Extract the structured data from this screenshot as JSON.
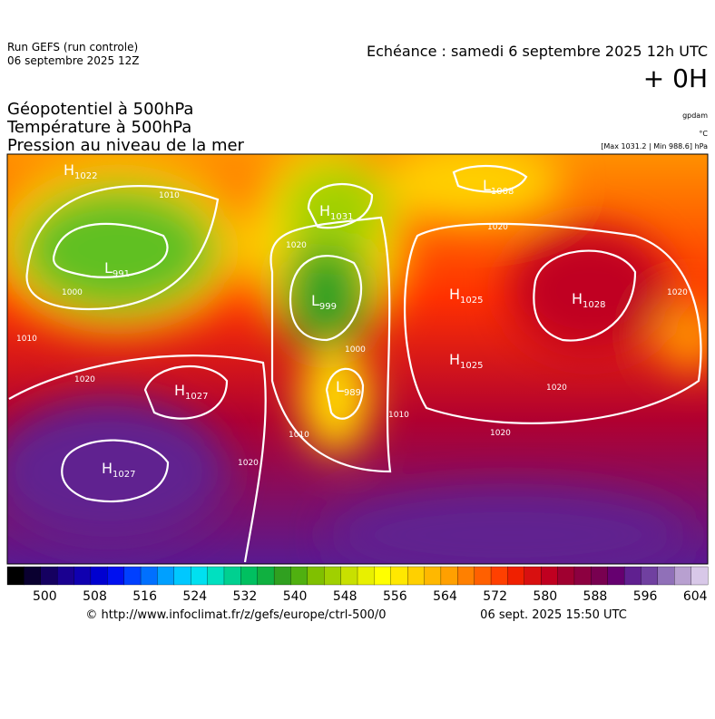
{
  "header": {
    "run": "Run GEFS (run controle)",
    "run_date": "06 septembre 2025 12Z",
    "valid": "Echéance : samedi 6 septembre 2025 12h UTC",
    "lead": "+ 0H"
  },
  "titles": [
    "Géopotentiel à 500hPa",
    "Température à 500hPa",
    "Pression au niveau de la mer"
  ],
  "units": {
    "geopotential": "gpdam",
    "temperature": "°C",
    "pressure": "[Max 1031.2 | Min 988.6] hPa"
  },
  "map": {
    "centers": [
      {
        "kind": "H",
        "value": 1022
      },
      {
        "kind": "L",
        "value": 1008
      },
      {
        "kind": "H",
        "value": 1031
      },
      {
        "kind": "L",
        "value": 991
      },
      {
        "kind": "L",
        "value": 999
      },
      {
        "kind": "H",
        "value": 1025
      },
      {
        "kind": "H",
        "value": 1028
      },
      {
        "kind": "H",
        "value": 1025
      },
      {
        "kind": "H",
        "value": 1027
      },
      {
        "kind": "L",
        "value": 989
      },
      {
        "kind": "H",
        "value": 1027
      }
    ],
    "isobar_labels": [
      1010,
      1020,
      1020,
      1000,
      1010,
      1020,
      1020,
      1000,
      1010,
      1010,
      1020,
      1020,
      1020
    ]
  },
  "colorbar": {
    "lim": [
      494,
      606
    ],
    "ticks": [
      500,
      508,
      516,
      524,
      532,
      540,
      548,
      556,
      564,
      572,
      580,
      588,
      596,
      604
    ],
    "colors": [
      "#000000",
      "#0a0030",
      "#150060",
      "#1a0090",
      "#1000b0",
      "#0000d0",
      "#0010f0",
      "#0040ff",
      "#0070ff",
      "#00a0ff",
      "#00c8ff",
      "#00e0f0",
      "#00e0c0",
      "#00d090",
      "#00c060",
      "#10b040",
      "#30a020",
      "#50b010",
      "#80c000",
      "#a0d000",
      "#c8e000",
      "#e8f000",
      "#ffff00",
      "#ffe800",
      "#ffd000",
      "#ffb800",
      "#ffa000",
      "#ff8000",
      "#ff6000",
      "#ff4000",
      "#f02000",
      "#d81010",
      "#c00020",
      "#a00030",
      "#8c0040",
      "#780050",
      "#660070",
      "#602090",
      "#7040a0",
      "#9070b8",
      "#b8a0d0",
      "#d8c8e8"
    ]
  },
  "footer": {
    "url": "© http://www.infoclimat.fr/z/gefs/europe/ctrl-500/0",
    "time": "06 sept. 2025 15:50 UTC"
  }
}
